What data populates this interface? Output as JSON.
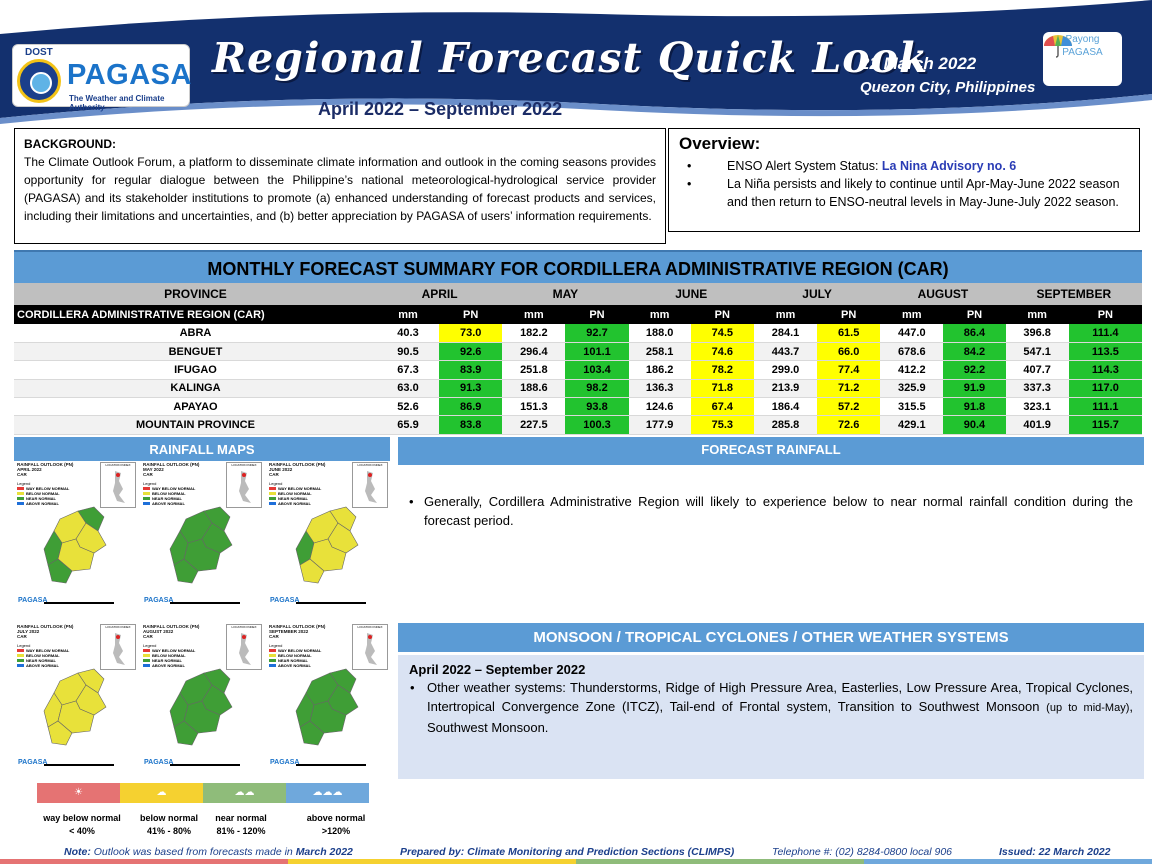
{
  "header": {
    "logo_agency": "DOST",
    "logo_name": "PAGASA",
    "logo_tagline": "The Weather and Climate Authority",
    "title": "Regional Forecast Quick Look",
    "date": "22 March 2022",
    "place": "Quezon City, Philippines",
    "period": "April 2022 – September 2022",
    "payong_line1": "Payong",
    "payong_line2": "PAGASA"
  },
  "background": {
    "heading": "BACKGROUND:",
    "text": "The Climate Outlook Forum, a platform to disseminate climate information and outlook in the coming seasons provides opportunity for regular dialogue between the Philippine’s national meteorological-hydrological service provider (PAGASA) and its stakeholder institutions to promote (a) enhanced understanding of forecast products and services, including their limitations and uncertainties, and (b) better appreciation by PAGASA of users’ information requirements."
  },
  "overview": {
    "heading": "Overview:",
    "item1_prefix": "ENSO Alert System Status: ",
    "item1_advisory": "La Nina Advisory no. 6",
    "item2": "La Niña persists and likely to continue until Apr-May-June 2022 season and then return to ENSO-neutral levels in May-June-July 2022 season."
  },
  "forecast_table": {
    "title": "MONTHLY FORECAST SUMMARY FOR CORDILLERA ADMINISTRATIVE REGION (CAR)",
    "province_header": "PROVINCE",
    "months": [
      "APRIL",
      "MAY",
      "JUNE",
      "JULY",
      "AUGUST",
      "SEPTEMBER"
    ],
    "sub_mm": "mm",
    "sub_pn": "PN",
    "region_label": "CORDILLERA ADMINISTRATIVE REGION (CAR)",
    "rows": [
      {
        "province": "ABRA",
        "values": [
          [
            "40.3",
            "73.0"
          ],
          [
            "182.2",
            "92.7"
          ],
          [
            "188.0",
            "74.5"
          ],
          [
            "284.1",
            "61.5"
          ],
          [
            "447.0",
            "86.4"
          ],
          [
            "396.8",
            "111.4"
          ]
        ]
      },
      {
        "province": "BENGUET",
        "values": [
          [
            "90.5",
            "92.6"
          ],
          [
            "296.4",
            "101.1"
          ],
          [
            "258.1",
            "74.6"
          ],
          [
            "443.7",
            "66.0"
          ],
          [
            "678.6",
            "84.2"
          ],
          [
            "547.1",
            "113.5"
          ]
        ]
      },
      {
        "province": "IFUGAO",
        "values": [
          [
            "67.3",
            "83.9"
          ],
          [
            "251.8",
            "103.4"
          ],
          [
            "186.2",
            "78.2"
          ],
          [
            "299.0",
            "77.4"
          ],
          [
            "412.2",
            "92.2"
          ],
          [
            "407.7",
            "114.3"
          ]
        ]
      },
      {
        "province": "KALINGA",
        "values": [
          [
            "63.0",
            "91.3"
          ],
          [
            "188.6",
            "98.2"
          ],
          [
            "136.3",
            "71.8"
          ],
          [
            "213.9",
            "71.2"
          ],
          [
            "325.9",
            "91.9"
          ],
          [
            "337.3",
            "117.0"
          ]
        ]
      },
      {
        "province": "APAYAO",
        "values": [
          [
            "52.6",
            "86.9"
          ],
          [
            "151.3",
            "93.8"
          ],
          [
            "124.6",
            "67.4"
          ],
          [
            "186.4",
            "57.2"
          ],
          [
            "315.5",
            "91.8"
          ],
          [
            "323.1",
            "111.1"
          ]
        ]
      },
      {
        "province": "MOUNTAIN PROVINCE",
        "values": [
          [
            "65.9",
            "83.8"
          ],
          [
            "227.5",
            "100.3"
          ],
          [
            "177.9",
            "75.3"
          ],
          [
            "285.8",
            "72.6"
          ],
          [
            "429.1",
            "90.4"
          ],
          [
            "401.9",
            "115.7"
          ]
        ]
      }
    ]
  },
  "rainfall_maps": {
    "heading": "RAINFALL MAPS",
    "maps": [
      {
        "title_l1": "RAINFALL OUTLOOK (PN)",
        "title_l2": "APRIL 2022",
        "title_l3": "CAR"
      },
      {
        "title_l1": "RAINFALL OUTLOOK (PN)",
        "title_l2": "MAY 2022",
        "title_l3": "CAR"
      },
      {
        "title_l1": "RAINFALL OUTLOOK (PN)",
        "title_l2": "JUNE 2022",
        "title_l3": "CAR"
      },
      {
        "title_l1": "RAINFALL OUTLOOK (PN)",
        "title_l2": "JULY 2022",
        "title_l3": "CAR"
      },
      {
        "title_l1": "RAINFALL OUTLOOK (PN)",
        "title_l2": "AUGUST 2022",
        "title_l3": "CAR"
      },
      {
        "title_l1": "RAINFALL OUTLOOK (PN)",
        "title_l2": "SEPTEMBER 2022",
        "title_l3": "CAR"
      }
    ],
    "map_legend": {
      "heading": "Legend",
      "items": [
        "WAY BELOW NORMAL",
        "BELOW NORMAL",
        "NEAR NORMAL",
        "ABOVE NORMAL"
      ],
      "location_label": "LOCATION INDEX",
      "logo": "PAGASA"
    },
    "legend": [
      {
        "label": "way below normal",
        "range": "< 40%",
        "color": "#e57373",
        "icon": "sun-icon"
      },
      {
        "label": "below normal",
        "range": "41% - 80%",
        "color": "#f5d130",
        "icon": "cloud-icon"
      },
      {
        "label": "near normal",
        "range": "81% - 120%",
        "color": "#8fbc7a",
        "icon": "cloud-rain-icon"
      },
      {
        "label": "above normal",
        "range": ">120%",
        "color": "#6fa8dc",
        "icon": "cloud-heavy-rain-icon"
      }
    ]
  },
  "forecast_rainfall": {
    "heading": "FORECAST RAINFALL",
    "text": "Generally, Cordillera Administrative Region will likely to experience below to near normal rainfall condition during the forecast period."
  },
  "weather_systems": {
    "heading": "MONSOON / TROPICAL CYCLONES / OTHER WEATHER SYSTEMS",
    "period": "April 2022 – September 2022",
    "text_main": "Other weather systems: Thunderstorms,  Ridge of High Pressure Area,  Easterlies, Low Pressure Area, Tropical Cyclones, Intertropical Convergence Zone (ITCZ), Tail-end of Frontal system, Transition to Southwest Monsoon ",
    "text_small": "(up to mid-May)",
    "text_end": ", Southwest Monsoon."
  },
  "footer": {
    "note_label": "Note:",
    "note_text": " Outlook was based from forecasts made in ",
    "note_month": "March 2022",
    "prepared": "Prepared by: Climate Monitoring and Prediction Sections (CLIMPS)",
    "telephone": "Telephone #: (02) 8284-0800 local 906",
    "issued": "Issued: 22 March 2022"
  },
  "colors": {
    "header_navy": "#13306e",
    "section_blue": "#5b9bd5",
    "pn_green": "#22c32f",
    "pn_yellow": "#ffff00"
  }
}
